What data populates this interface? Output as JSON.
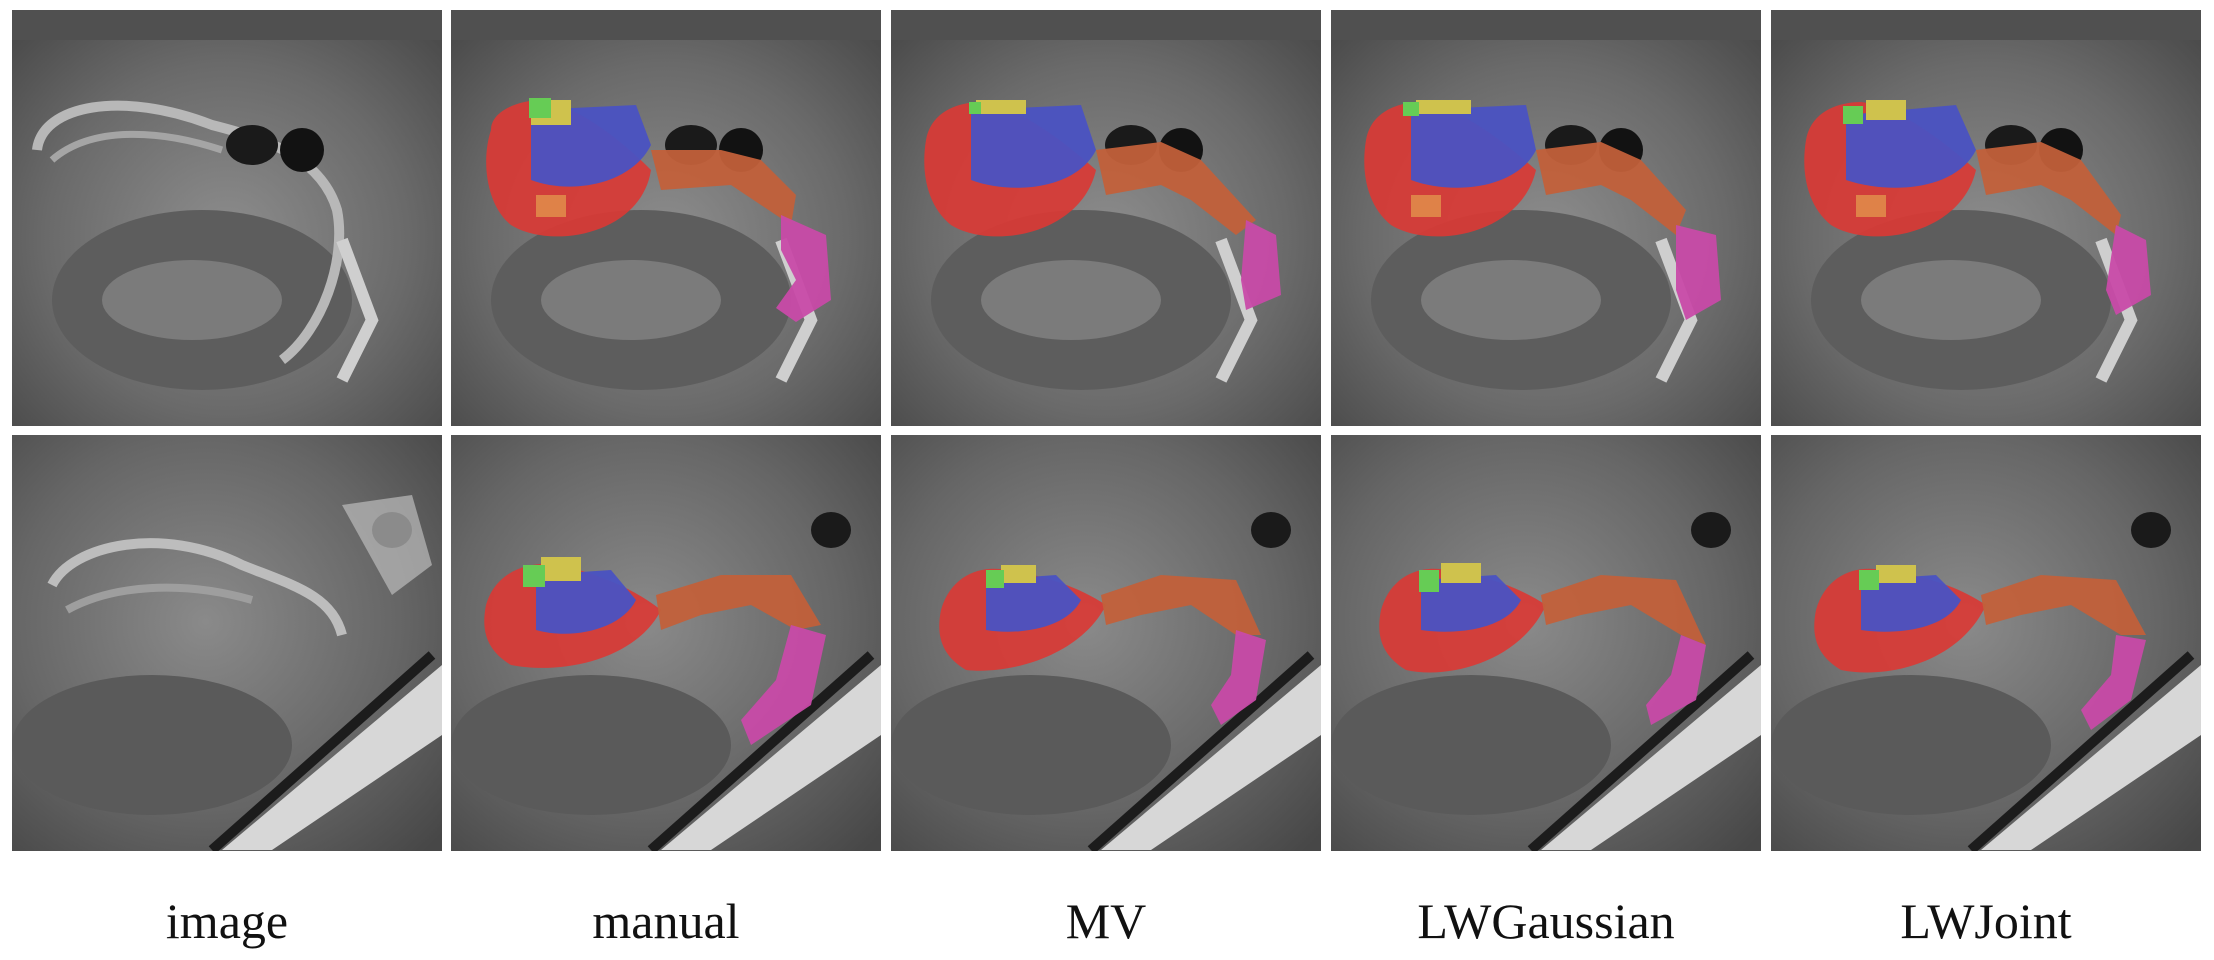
{
  "columns": [
    {
      "label": "image",
      "overlay": false
    },
    {
      "label": "manual",
      "overlay": true
    },
    {
      "label": "MV",
      "overlay": true
    },
    {
      "label": "LWGaussian",
      "overlay": true
    },
    {
      "label": "LWJoint",
      "overlay": true
    }
  ],
  "label_colors": {
    "red": "#d93a35",
    "blue": "#4a52c2",
    "orange": "#c2603a",
    "magenta": "#c84aa8",
    "green": "#66cc55",
    "yellow": "#cfc24d",
    "light_orange": "#e08a4a"
  }
}
